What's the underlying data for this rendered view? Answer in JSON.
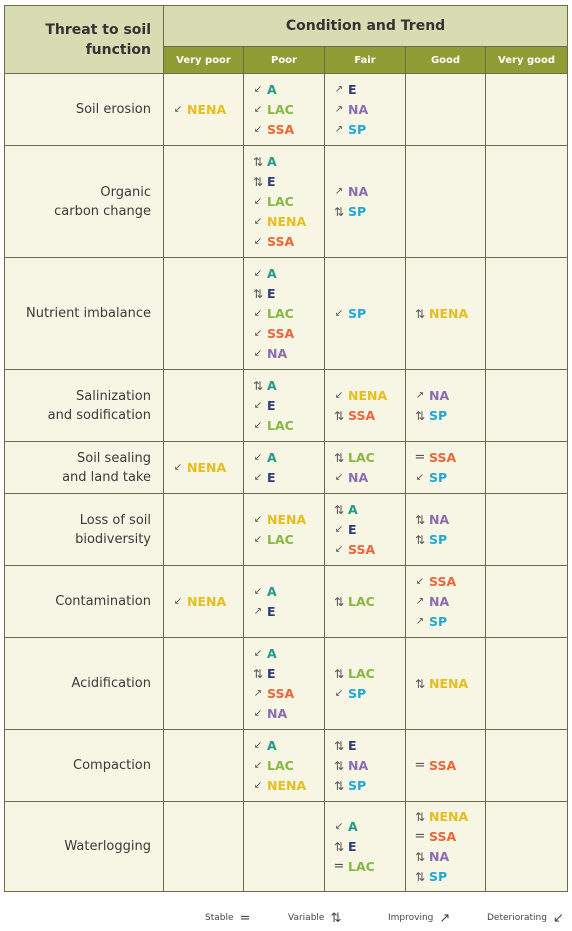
{
  "header": {
    "threat_line1": "Threat to soil",
    "threat_line2": "function",
    "condition": "Condition and Trend"
  },
  "levels": [
    "Very poor",
    "Poor",
    "Fair",
    "Good",
    "Very good"
  ],
  "symbols": {
    "stable": "=",
    "variable": "⇅",
    "improving": "↗",
    "deteriorating": "↙"
  },
  "region_colors": {
    "A": "#1f9b86",
    "E": "#2b3d7a",
    "LAC": "#86b940",
    "NENA": "#e5bd1e",
    "SSA": "#e8663a",
    "NA": "#8c6cb1",
    "SP": "#20a8d9"
  },
  "rows": [
    {
      "threat": [
        "Soil erosion"
      ],
      "height": 72,
      "cells": [
        [
          [
            "d",
            "NENA"
          ]
        ],
        [
          [
            "d",
            "A"
          ],
          [
            "d",
            "LAC"
          ],
          [
            "d",
            "SSA"
          ]
        ],
        [
          [
            "i",
            "E"
          ],
          [
            "i",
            "NA"
          ],
          [
            "i",
            "SP"
          ]
        ],
        [],
        []
      ]
    },
    {
      "threat": [
        "Organic",
        "carbon change"
      ],
      "height": 112,
      "cells": [
        [],
        [
          [
            "v",
            "A"
          ],
          [
            "v",
            "E"
          ],
          [
            "d",
            "LAC"
          ],
          [
            "d",
            "NENA"
          ],
          [
            "d",
            "SSA"
          ]
        ],
        [
          [
            "i",
            "NA"
          ],
          [
            "v",
            "SP"
          ]
        ],
        [],
        []
      ]
    },
    {
      "threat": [
        "Nutrient imbalance"
      ],
      "height": 112,
      "cells": [
        [],
        [
          [
            "d",
            "A"
          ],
          [
            "v",
            "E"
          ],
          [
            "d",
            "LAC"
          ],
          [
            "d",
            "SSA"
          ],
          [
            "d",
            "NA"
          ]
        ],
        [
          [
            "d",
            "SP"
          ]
        ],
        [
          [
            "v",
            "NENA"
          ]
        ],
        []
      ]
    },
    {
      "threat": [
        "Salinization",
        "and sodification"
      ],
      "height": 72,
      "cells": [
        [],
        [
          [
            "v",
            "A"
          ],
          [
            "d",
            "E"
          ],
          [
            "d",
            "LAC"
          ]
        ],
        [
          [
            "d",
            "NENA"
          ],
          [
            "v",
            "SSA"
          ]
        ],
        [
          [
            "i",
            "NA"
          ],
          [
            "v",
            "SP"
          ]
        ],
        []
      ]
    },
    {
      "threat": [
        "Soil sealing",
        "and land take"
      ],
      "height": 52,
      "cells": [
        [
          [
            "d",
            "NENA"
          ]
        ],
        [
          [
            "d",
            "A"
          ],
          [
            "d",
            "E"
          ]
        ],
        [
          [
            "v",
            "LAC"
          ],
          [
            "d",
            "NA"
          ]
        ],
        [
          [
            "s",
            "SSA"
          ],
          [
            "d",
            "SP"
          ]
        ],
        []
      ]
    },
    {
      "threat": [
        "Loss of soil",
        "biodiversity"
      ],
      "height": 72,
      "cells": [
        [],
        [
          [
            "d",
            "NENA"
          ],
          [
            "d",
            "LAC"
          ]
        ],
        [
          [
            "v",
            "A"
          ],
          [
            "d",
            "E"
          ],
          [
            "d",
            "SSA"
          ]
        ],
        [
          [
            "v",
            "NA"
          ],
          [
            "v",
            "SP"
          ]
        ],
        []
      ]
    },
    {
      "threat": [
        "Contamination"
      ],
      "height": 72,
      "cells": [
        [
          [
            "d",
            "NENA"
          ]
        ],
        [
          [
            "d",
            "A"
          ],
          [
            "i",
            "E"
          ]
        ],
        [
          [
            "v",
            "LAC"
          ]
        ],
        [
          [
            "d",
            "SSA"
          ],
          [
            "i",
            "NA"
          ],
          [
            "i",
            "SP"
          ]
        ],
        []
      ]
    },
    {
      "threat": [
        "Acidification"
      ],
      "height": 92,
      "cells": [
        [],
        [
          [
            "d",
            "A"
          ],
          [
            "v",
            "E"
          ],
          [
            "i",
            "SSA"
          ],
          [
            "d",
            "NA"
          ]
        ],
        [
          [
            "v",
            "LAC"
          ],
          [
            "d",
            "SP"
          ]
        ],
        [
          [
            "v",
            "NENA"
          ]
        ],
        []
      ]
    },
    {
      "threat": [
        "Compaction"
      ],
      "height": 72,
      "cells": [
        [],
        [
          [
            "d",
            "A"
          ],
          [
            "d",
            "LAC"
          ],
          [
            "d",
            "NENA"
          ]
        ],
        [
          [
            "v",
            "E"
          ],
          [
            "v",
            "NA"
          ],
          [
            "v",
            "SP"
          ]
        ],
        [
          [
            "s",
            "SSA"
          ]
        ],
        []
      ]
    },
    {
      "threat": [
        "Waterlogging"
      ],
      "height": 90,
      "cells": [
        [],
        [],
        [
          [
            "d",
            "A"
          ],
          [
            "v",
            "E"
          ],
          [
            "s",
            "LAC"
          ]
        ],
        [
          [
            "v",
            "NENA"
          ],
          [
            "s",
            "SSA"
          ],
          [
            "v",
            "NA"
          ],
          [
            "v",
            "SP"
          ]
        ],
        []
      ]
    }
  ],
  "legend": [
    {
      "label": "Stable",
      "symbol": "="
    },
    {
      "label": "Variable",
      "symbol": "⇅"
    },
    {
      "label": "Improving",
      "symbol": "↗"
    },
    {
      "label": "Deteriorating",
      "symbol": "↙"
    }
  ]
}
